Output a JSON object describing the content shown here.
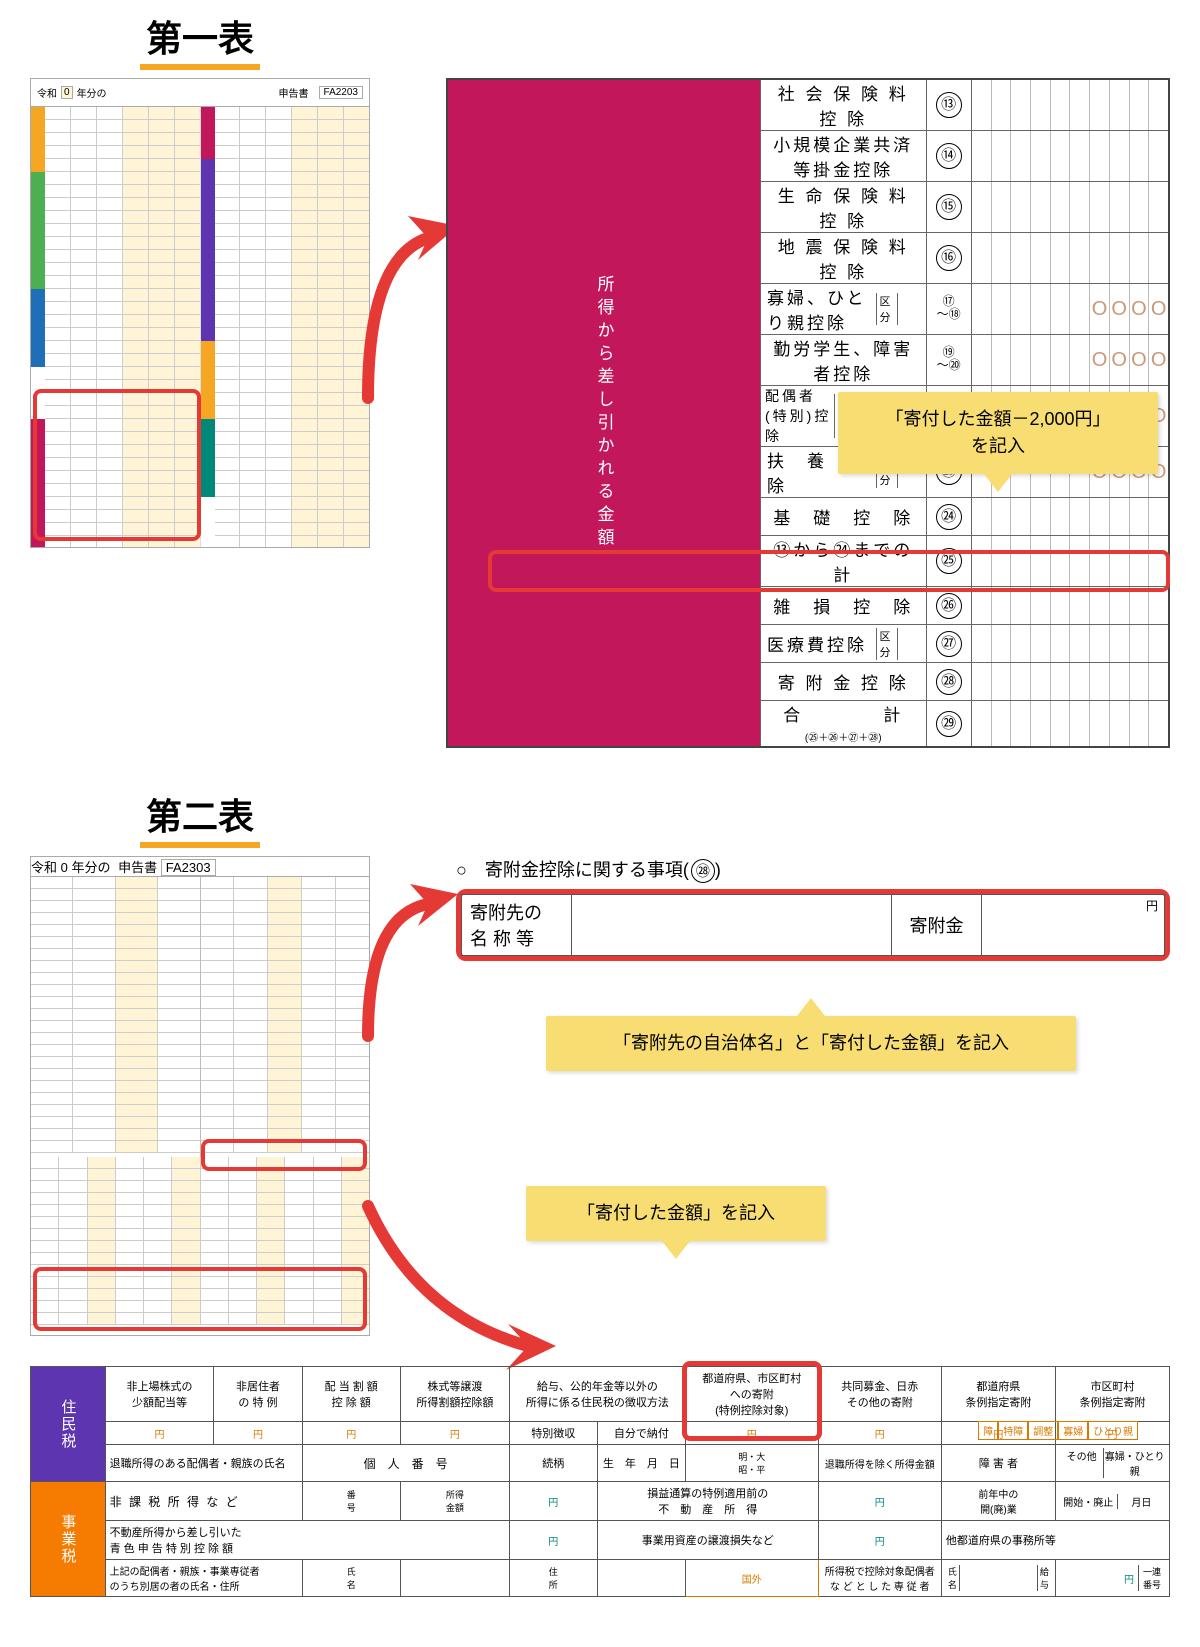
{
  "heading1": "第一表",
  "heading2": "第二表",
  "miniform_header": {
    "era": "令和",
    "yearbox": "0",
    "suffix": "年分の",
    "doc": "申告書",
    "code": "FA2203"
  },
  "detail_rows": [
    {
      "label": "社 会 保 険 料 控 除",
      "num": "⑬",
      "zeros": false
    },
    {
      "label": "小規模企業共済等掛金控除",
      "num": "⑭",
      "zeros": false
    },
    {
      "label": "生 命 保 険 料 控 除",
      "num": "⑮",
      "zeros": false
    },
    {
      "label": "地 震 保 険 料 控 除",
      "num": "⑯",
      "zeros": false
    },
    {
      "label": "寡婦、ひとり親控除",
      "num": "⑰<br>～⑱",
      "zeros": true,
      "kubun": "区<br>分"
    },
    {
      "label": "勤労学生、障害者控除",
      "num": "⑲<br>～⑳",
      "zeros": true
    },
    {
      "label": "配偶者<br>(特別)控除",
      "num": "㉑<br>～㉒",
      "zeros": true,
      "kubun2": true
    },
    {
      "label": "扶　養　控　除",
      "num": "㉓",
      "zeros": true,
      "kubun": "区<br>分"
    },
    {
      "label": "基　礎　控　除",
      "num": "㉔",
      "zeros": false
    },
    {
      "label": "⑬から㉔までの計",
      "num": "㉕",
      "zeros": false
    },
    {
      "label": "雑　損　控　除",
      "num": "㉖",
      "zeros": false
    },
    {
      "label": "医療費控除",
      "num": "㉗",
      "zeros": false,
      "kubun": "区<br>分"
    },
    {
      "label": "寄 附 金 控 除",
      "num": "㉘",
      "zeros": false,
      "highlight": true
    },
    {
      "label": "合　　　　計<br><span class='small-sub'>(㉕＋㉖＋㉗＋㉘)</span>",
      "num": "㉙",
      "zeros": false
    }
  ],
  "vstrip_label": "所得から差し引かれる金額",
  "callout1a": "「寄付した金額－2,000円」",
  "callout1b": "を記入",
  "s2_title_pre": "○　寄附金控除に関する事項",
  "s2_title_num": "㉘",
  "s2_col1": "寄附先の",
  "s2_col1b": "名 称 等",
  "s2_col2": "寄附金",
  "s2_yen": "円",
  "callout2": "「寄附先の自治体名」と「寄付した金額」を記入",
  "callout3": "「寄付した金額」を記入",
  "miniform2_header": {
    "era": "令和",
    "yearbox": "0",
    "suffix": "年分の",
    "doc": "申告書",
    "code": "FA2303"
  },
  "btm": {
    "strip1": "住民税",
    "strip2": "事業税",
    "heads": [
      "非上場株式の\n少額配当等",
      "非居住者\nの 特 例",
      "配 当 割 額\n控 除 額",
      "株式等譲渡\n所得割額控除額",
      "給与、公的年金等以外の\n所得に係る住民税の徴収方法",
      "都道府県、市区町村\nへの寄附\n(特例控除対象)",
      "共同募金、日赤\nその他の寄附",
      "都道府県\n条例指定寄附",
      "市区町村\n条例指定寄附"
    ],
    "sub5a": "特別徴収",
    "sub5b": "自分で納付",
    "row2": [
      "退職所得のある配偶者・親族の氏名",
      "個　人　番　号",
      "続柄",
      "生　年　月　日",
      "退職所得を除く所得金額",
      "障 害 者",
      "その他",
      "寡婦・ひとり親"
    ],
    "orangewords": [
      "障",
      "特障",
      "調整",
      "寡婦",
      "ひとり親"
    ],
    "r3a": "非 課 税 所 得 な ど",
    "r3a2": "番\n号",
    "r3a3": "所得\n金額",
    "r3b": "損益通算の特例適用前の\n不　動　産　所　得",
    "r3c": "前年中の\n開(廃)業",
    "r3c2": "開始・廃止",
    "r3c3": "月日",
    "r4a": "不動産所得から差し引いた\n青 色 申 告 特 別 控 除 額",
    "r4b": "事業用資産の譲渡損失など",
    "r4c": "他都道府県の事務所等",
    "r5a": "上記の配偶者・親族・事業専従者\nのうち別居の者の氏名・住所",
    "r5b": "氏\n名",
    "r5c": "住\n所",
    "r5d": "国外",
    "r5e": "所得税で控除対象配偶者\nな ど と し た 専 従 者",
    "r5f": "氏\n名",
    "r5g": "給\n与",
    "r5h": "一連\n番号",
    "meiji": "明・大\n昭・平"
  }
}
